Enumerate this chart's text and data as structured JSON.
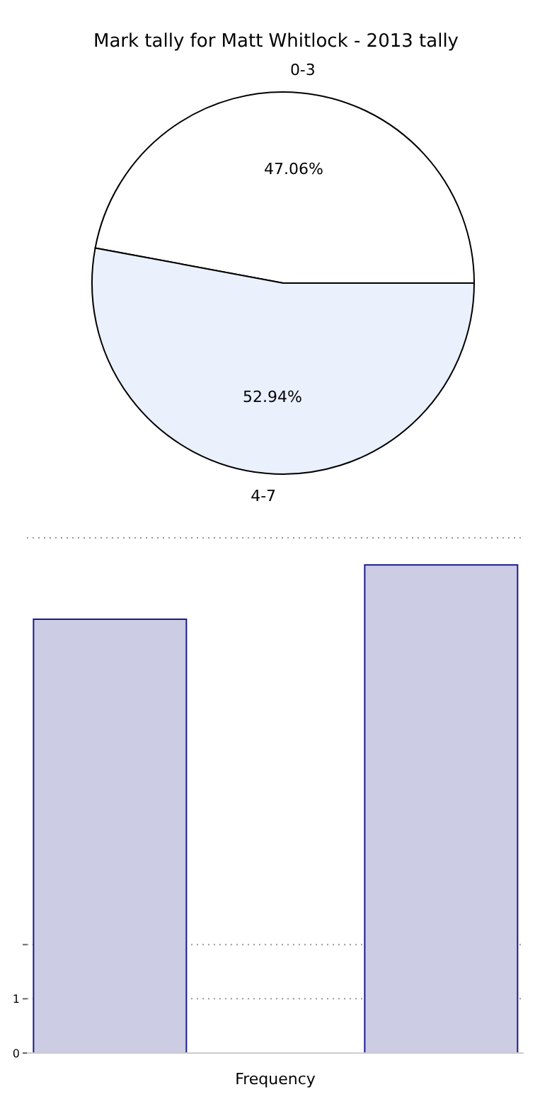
{
  "chart_data": [
    {
      "type": "pie",
      "title": "Mark tally for Matt Whitlock - 2013 tally",
      "categories": [
        "0-3",
        "4-7"
      ],
      "values": [
        47.06,
        52.94
      ],
      "colors": [
        "#ffffff",
        "#eaf0fc"
      ],
      "value_labels": [
        "47.06%",
        "52.94%"
      ]
    },
    {
      "type": "bar",
      "xlabel": "Frequency",
      "categories": [
        null,
        null,
        null
      ],
      "values": [
        8,
        null,
        9
      ],
      "color": "#ccccE4",
      "ylim": [
        0,
        9.5
      ],
      "yticks": [
        0,
        1,
        {
          "value": 2,
          "label": null
        }
      ],
      "grid": "y",
      "tick_labels": "y"
    }
  ]
}
